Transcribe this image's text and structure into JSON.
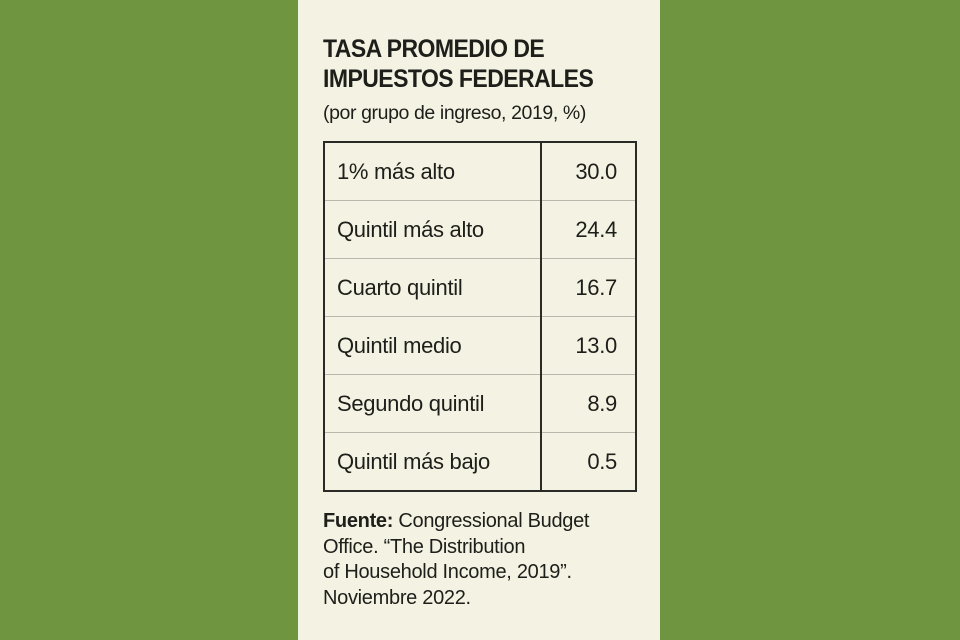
{
  "colors": {
    "background": "#6f9540",
    "panel": "#f4f3e3",
    "text": "#1e1e1a"
  },
  "chart_data": {
    "type": "table",
    "title_lines": [
      "TASA PROMEDIO DE",
      "IMPUESTOS FEDERALES"
    ],
    "subtitle": "(por grupo de ingreso, 2019, %)",
    "rows": [
      {
        "label": "1% más alto",
        "value": "30.0"
      },
      {
        "label": "Quintil más alto",
        "value": "24.4"
      },
      {
        "label": "Cuarto quintil",
        "value": "16.7"
      },
      {
        "label": "Quintil medio",
        "value": "13.0"
      },
      {
        "label": "Segundo quintil",
        "value": "8.9"
      },
      {
        "label": "Quintil más bajo",
        "value": "0.5"
      }
    ]
  },
  "source": {
    "label": "Fuente:",
    "line1": " Congressional Budget",
    "line2": "Office. “The Distribution",
    "line3": "of Household Income, 2019”.",
    "line4": "Noviembre 2022."
  }
}
